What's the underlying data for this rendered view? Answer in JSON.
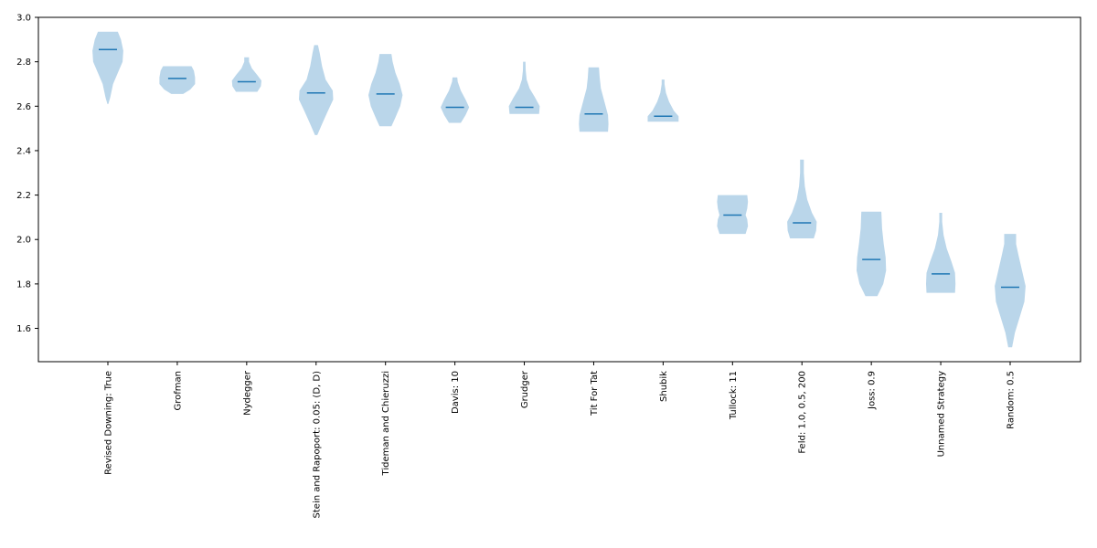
{
  "colors": {
    "violin_fill": "#bad6ea",
    "median": "#1f77b4",
    "axis": "#000000",
    "background": "#ffffff"
  },
  "chart_data": {
    "type": "violin",
    "title": "",
    "xlabel": "",
    "ylabel": "",
    "ylim": [
      1.45,
      3.0
    ],
    "yticks": [
      1.6,
      1.8,
      2.0,
      2.2,
      2.4,
      2.6,
      2.8,
      3.0
    ],
    "ytick_labels": [
      "1.6",
      "1.8",
      "2.0",
      "2.2",
      "2.4",
      "2.6",
      "2.8",
      "3.0"
    ],
    "grid": false,
    "categories": [
      "Revised Downing: True",
      "Grofman",
      "Nydegger",
      "Stein and Rapoport: 0.05: (D, D)",
      "Tideman and Chieruzzi",
      "Davis: 10",
      "Grudger",
      "Tit For Tat",
      "Shubik",
      "Tullock: 11",
      "Feld: 1.0, 0.5, 200",
      "Joss: 0.9",
      "Unnamed Strategy",
      "Random: 0.5"
    ],
    "violins": [
      {
        "min": 2.61,
        "max": 2.935,
        "median": 2.855,
        "profile": [
          [
            2.61,
            0.02
          ],
          [
            2.64,
            0.1
          ],
          [
            2.7,
            0.22
          ],
          [
            2.75,
            0.42
          ],
          [
            2.8,
            0.62
          ],
          [
            2.85,
            0.65
          ],
          [
            2.9,
            0.55
          ],
          [
            2.935,
            0.42
          ]
        ]
      },
      {
        "min": 2.655,
        "max": 2.78,
        "median": 2.725,
        "profile": [
          [
            2.655,
            0.25
          ],
          [
            2.675,
            0.55
          ],
          [
            2.7,
            0.75
          ],
          [
            2.73,
            0.75
          ],
          [
            2.76,
            0.7
          ],
          [
            2.78,
            0.6
          ]
        ]
      },
      {
        "min": 2.665,
        "max": 2.82,
        "median": 2.71,
        "profile": [
          [
            2.665,
            0.45
          ],
          [
            2.69,
            0.6
          ],
          [
            2.715,
            0.62
          ],
          [
            2.74,
            0.45
          ],
          [
            2.77,
            0.22
          ],
          [
            2.8,
            0.1
          ],
          [
            2.82,
            0.1
          ]
        ]
      },
      {
        "min": 2.47,
        "max": 2.875,
        "median": 2.66,
        "profile": [
          [
            2.47,
            0.05
          ],
          [
            2.52,
            0.25
          ],
          [
            2.58,
            0.5
          ],
          [
            2.63,
            0.72
          ],
          [
            2.67,
            0.7
          ],
          [
            2.72,
            0.4
          ],
          [
            2.78,
            0.25
          ],
          [
            2.84,
            0.15
          ],
          [
            2.875,
            0.08
          ]
        ]
      },
      {
        "min": 2.51,
        "max": 2.835,
        "median": 2.655,
        "profile": [
          [
            2.51,
            0.25
          ],
          [
            2.55,
            0.42
          ],
          [
            2.6,
            0.62
          ],
          [
            2.65,
            0.72
          ],
          [
            2.7,
            0.6
          ],
          [
            2.75,
            0.42
          ],
          [
            2.8,
            0.3
          ],
          [
            2.835,
            0.25
          ]
        ]
      },
      {
        "min": 2.525,
        "max": 2.73,
        "median": 2.595,
        "profile": [
          [
            2.525,
            0.25
          ],
          [
            2.56,
            0.45
          ],
          [
            2.595,
            0.6
          ],
          [
            2.63,
            0.45
          ],
          [
            2.67,
            0.25
          ],
          [
            2.71,
            0.12
          ],
          [
            2.73,
            0.1
          ]
        ]
      },
      {
        "min": 2.565,
        "max": 2.8,
        "median": 2.595,
        "profile": [
          [
            2.565,
            0.62
          ],
          [
            2.6,
            0.65
          ],
          [
            2.64,
            0.45
          ],
          [
            2.68,
            0.22
          ],
          [
            2.72,
            0.1
          ],
          [
            2.76,
            0.06
          ],
          [
            2.8,
            0.05
          ]
        ]
      },
      {
        "min": 2.485,
        "max": 2.775,
        "median": 2.565,
        "profile": [
          [
            2.485,
            0.6
          ],
          [
            2.52,
            0.62
          ],
          [
            2.56,
            0.6
          ],
          [
            2.62,
            0.45
          ],
          [
            2.68,
            0.3
          ],
          [
            2.73,
            0.25
          ],
          [
            2.775,
            0.22
          ]
        ]
      },
      {
        "min": 2.53,
        "max": 2.72,
        "median": 2.555,
        "profile": [
          [
            2.53,
            0.65
          ],
          [
            2.555,
            0.65
          ],
          [
            2.58,
            0.45
          ],
          [
            2.62,
            0.25
          ],
          [
            2.66,
            0.12
          ],
          [
            2.7,
            0.06
          ],
          [
            2.72,
            0.06
          ]
        ]
      },
      {
        "min": 2.025,
        "max": 2.2,
        "median": 2.11,
        "profile": [
          [
            2.025,
            0.55
          ],
          [
            2.06,
            0.65
          ],
          [
            2.09,
            0.62
          ],
          [
            2.11,
            0.55
          ],
          [
            2.14,
            0.62
          ],
          [
            2.17,
            0.65
          ],
          [
            2.2,
            0.62
          ]
        ]
      },
      {
        "min": 2.005,
        "max": 2.36,
        "median": 2.075,
        "profile": [
          [
            2.005,
            0.5
          ],
          [
            2.04,
            0.6
          ],
          [
            2.08,
            0.62
          ],
          [
            2.12,
            0.42
          ],
          [
            2.18,
            0.22
          ],
          [
            2.24,
            0.12
          ],
          [
            2.3,
            0.08
          ],
          [
            2.36,
            0.08
          ]
        ]
      },
      {
        "min": 1.745,
        "max": 2.125,
        "median": 1.91,
        "profile": [
          [
            1.745,
            0.25
          ],
          [
            1.8,
            0.5
          ],
          [
            1.86,
            0.62
          ],
          [
            1.92,
            0.6
          ],
          [
            1.98,
            0.52
          ],
          [
            2.05,
            0.45
          ],
          [
            2.125,
            0.42
          ]
        ]
      },
      {
        "min": 1.76,
        "max": 2.12,
        "median": 1.845,
        "profile": [
          [
            1.76,
            0.6
          ],
          [
            1.8,
            0.62
          ],
          [
            1.85,
            0.6
          ],
          [
            1.9,
            0.45
          ],
          [
            1.96,
            0.25
          ],
          [
            2.02,
            0.12
          ],
          [
            2.08,
            0.06
          ],
          [
            2.12,
            0.06
          ]
        ]
      },
      {
        "min": 1.515,
        "max": 2.025,
        "median": 1.785,
        "profile": [
          [
            1.515,
            0.08
          ],
          [
            1.58,
            0.2
          ],
          [
            1.65,
            0.4
          ],
          [
            1.72,
            0.6
          ],
          [
            1.79,
            0.65
          ],
          [
            1.86,
            0.5
          ],
          [
            1.93,
            0.35
          ],
          [
            1.98,
            0.25
          ],
          [
            2.025,
            0.25
          ]
        ]
      }
    ]
  }
}
